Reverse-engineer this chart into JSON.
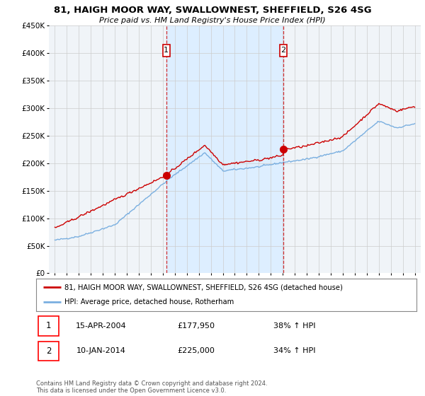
{
  "title_line1": "81, HAIGH MOOR WAY, SWALLOWNEST, SHEFFIELD, S26 4SG",
  "title_line2": "Price paid vs. HM Land Registry's House Price Index (HPI)",
  "legend_line1": "81, HAIGH MOOR WAY, SWALLOWNEST, SHEFFIELD, S26 4SG (detached house)",
  "legend_line2": "HPI: Average price, detached house, Rotherham",
  "sale1_date": "15-APR-2004",
  "sale1_price": "£177,950",
  "sale1_hpi_text": "38% ↑ HPI",
  "sale1_label": "1",
  "sale1_year": 2004.29,
  "sale2_date": "10-JAN-2014",
  "sale2_price": "£225,000",
  "sale2_hpi_text": "34% ↑ HPI",
  "sale2_label": "2",
  "sale2_year": 2014.03,
  "ylim_min": 0,
  "ylim_max": 450000,
  "xlim_min": 1994.5,
  "xlim_max": 2025.5,
  "yticks": [
    0,
    50000,
    100000,
    150000,
    200000,
    250000,
    300000,
    350000,
    400000,
    450000
  ],
  "ytick_labels": [
    "£0",
    "£50K",
    "£100K",
    "£150K",
    "£200K",
    "£250K",
    "£300K",
    "£350K",
    "£400K",
    "£450K"
  ],
  "xticks": [
    1995,
    1996,
    1997,
    1998,
    1999,
    2000,
    2001,
    2002,
    2003,
    2004,
    2005,
    2006,
    2007,
    2008,
    2009,
    2010,
    2011,
    2012,
    2013,
    2014,
    2015,
    2016,
    2017,
    2018,
    2019,
    2020,
    2021,
    2022,
    2023,
    2024,
    2025
  ],
  "property_color": "#cc0000",
  "hpi_color": "#7aafe0",
  "shade_color": "#ddeeff",
  "plot_bg_color": "#f0f4f8",
  "grid_color": "#cccccc",
  "marker_box_color": "#cc0000",
  "footer": "Contains HM Land Registry data © Crown copyright and database right 2024.\nThis data is licensed under the Open Government Licence v3.0."
}
